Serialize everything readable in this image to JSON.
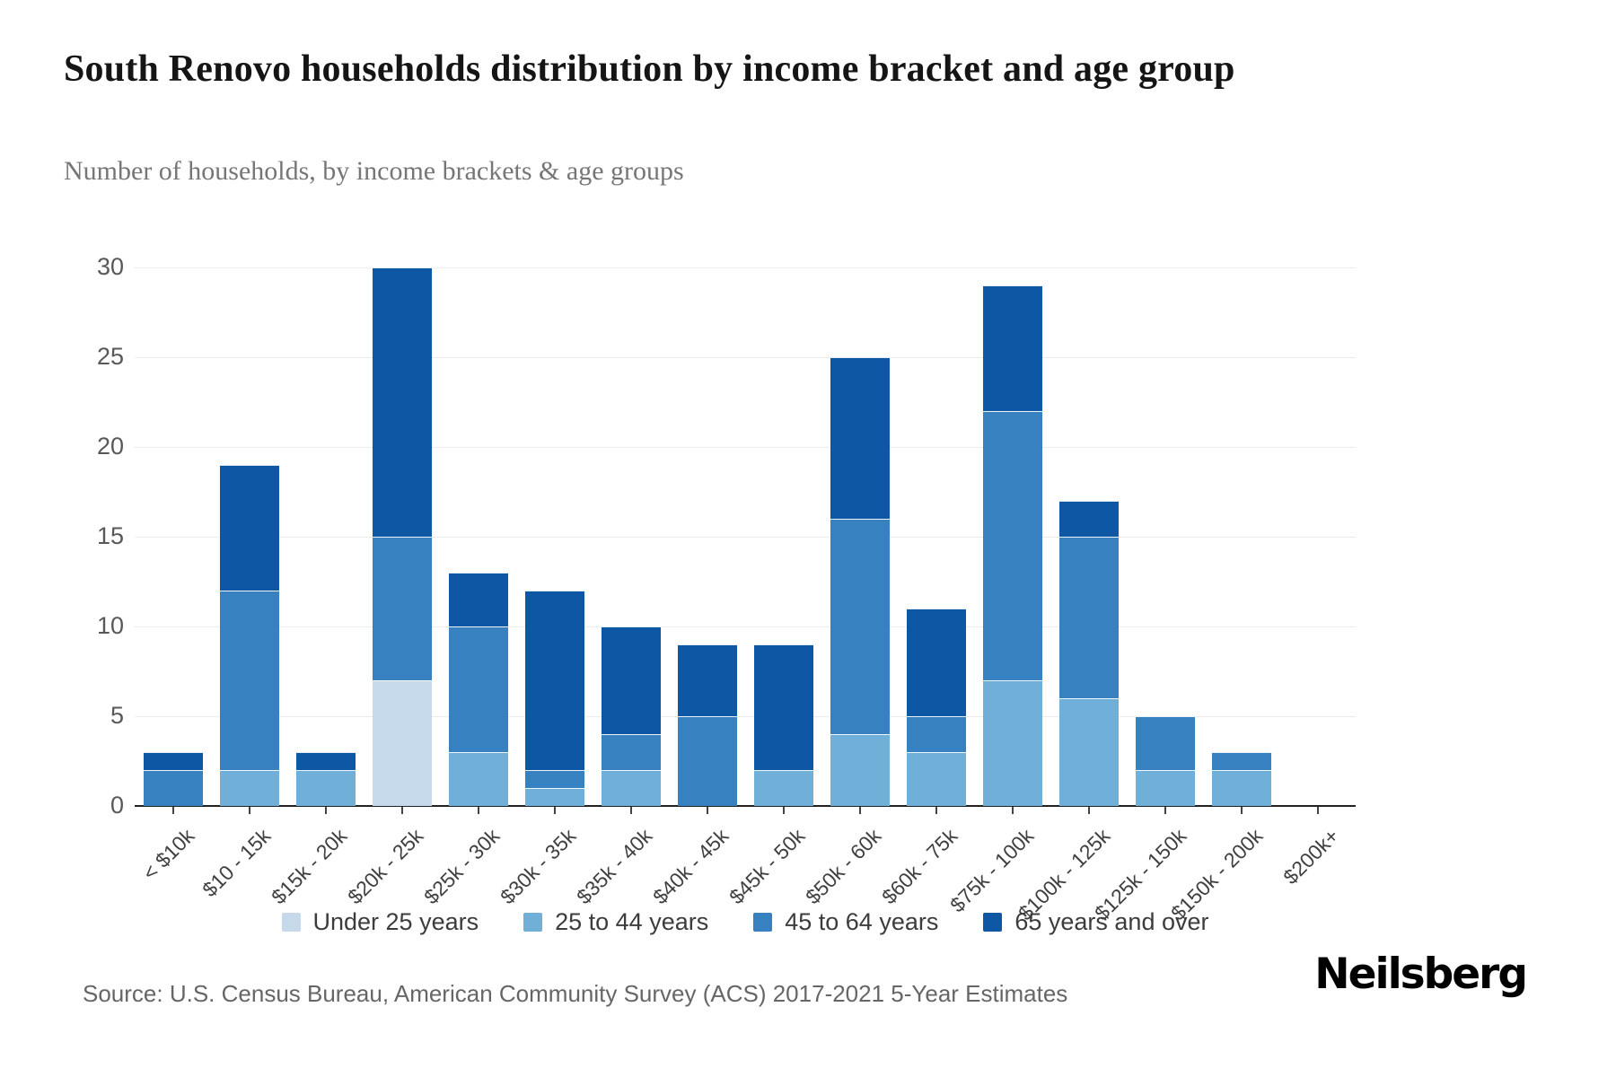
{
  "header": {
    "title": "South Renovo households distribution by income bracket and age group",
    "subtitle": "Number of households, by income brackets & age groups"
  },
  "footer": {
    "source": "Source: U.S. Census Bureau, American Community Survey (ACS) 2017-2021 5-Year Estimates",
    "brand": "Neilsberg"
  },
  "chart_data": {
    "type": "bar",
    "stacked": true,
    "title": "South Renovo households distribution by income bracket and age group",
    "xlabel": "",
    "ylabel": "Number of households",
    "ylim": [
      0,
      30
    ],
    "yticks": [
      0,
      5,
      10,
      15,
      20,
      25,
      30
    ],
    "grid": true,
    "legend_position": "bottom",
    "categories": [
      "< $10k",
      "$10 - 15k",
      "$15k - 20k",
      "$20k - 25k",
      "$25k - 30k",
      "$30k - 35k",
      "$35k - 40k",
      "$40k - 45k",
      "$45k - 50k",
      "$50k - 60k",
      "$60k - 75k",
      "$75k - 100k",
      "$100k - 125k",
      "$125k - 150k",
      "$150k - 200k",
      "$200k+"
    ],
    "series": [
      {
        "name": "Under 25 years",
        "color": "#c5d9ea",
        "values": [
          0,
          0,
          0,
          7,
          0,
          0,
          0,
          0,
          0,
          0,
          0,
          0,
          0,
          0,
          0,
          0
        ]
      },
      {
        "name": "25 to 44 years",
        "color": "#6fafd8",
        "values": [
          0,
          2,
          2,
          0,
          3,
          1,
          2,
          0,
          2,
          4,
          3,
          7,
          6,
          2,
          2,
          0
        ]
      },
      {
        "name": "45 to 64 years",
        "color": "#3781c1",
        "values": [
          2,
          10,
          0,
          8,
          7,
          1,
          2,
          5,
          0,
          12,
          2,
          15,
          9,
          3,
          1,
          0
        ]
      },
      {
        "name": "65 years and over",
        "color": "#0d57a4",
        "values": [
          1,
          7,
          1,
          15,
          3,
          10,
          6,
          4,
          7,
          9,
          6,
          7,
          2,
          0,
          0,
          0
        ]
      }
    ],
    "totals": [
      3,
      19,
      3,
      30,
      13,
      12,
      10,
      9,
      9,
      25,
      11,
      29,
      17,
      5,
      3,
      0
    ]
  },
  "colors": {
    "grid": "#ececec",
    "axis": "#222222",
    "tick_label": "#585858"
  }
}
